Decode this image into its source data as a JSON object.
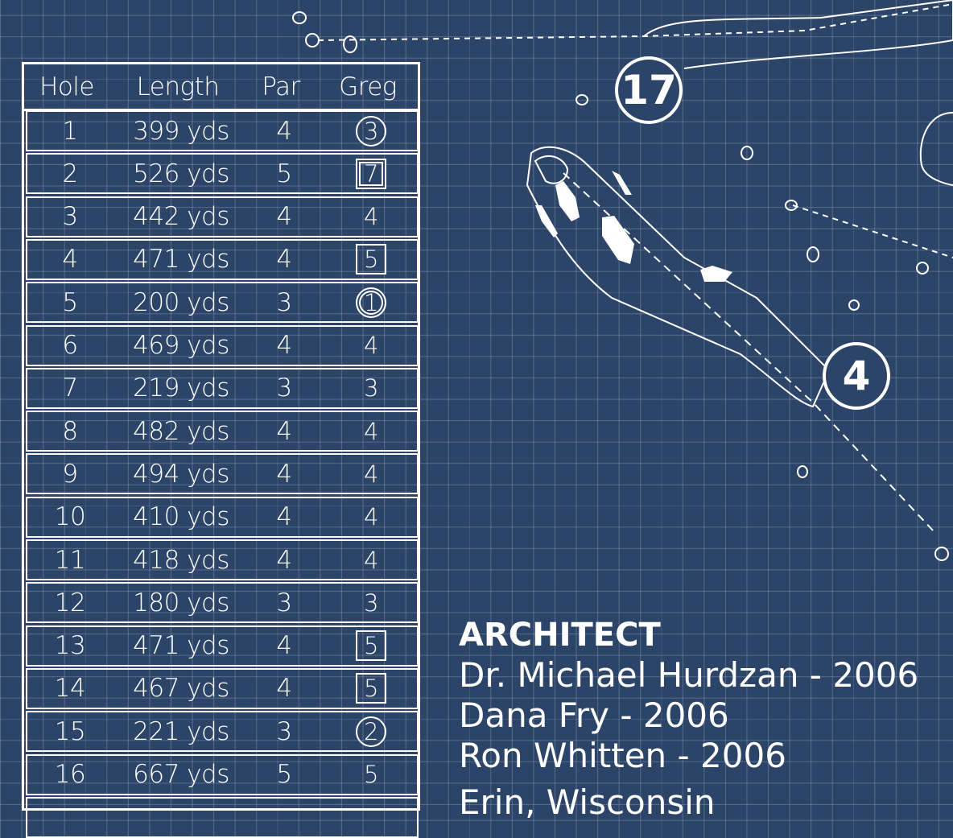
{
  "colors": {
    "background": "#2b4468",
    "lines": "#ffffff"
  },
  "scorecard": {
    "headers": {
      "hole": "Hole",
      "length": "Length",
      "par": "Par",
      "player": "Greg"
    },
    "rows": [
      {
        "hole": "1",
        "length": "399 yds",
        "par": "4",
        "score": "3",
        "mark": "circle"
      },
      {
        "hole": "2",
        "length": "526 yds",
        "par": "5",
        "score": "7",
        "mark": "double-square"
      },
      {
        "hole": "3",
        "length": "442 yds",
        "par": "4",
        "score": "4",
        "mark": "none"
      },
      {
        "hole": "4",
        "length": "471 yds",
        "par": "4",
        "score": "5",
        "mark": "square"
      },
      {
        "hole": "5",
        "length": "200 yds",
        "par": "3",
        "score": "1",
        "mark": "double-circle"
      },
      {
        "hole": "6",
        "length": "469 yds",
        "par": "4",
        "score": "4",
        "mark": "none"
      },
      {
        "hole": "7",
        "length": "219 yds",
        "par": "3",
        "score": "3",
        "mark": "none"
      },
      {
        "hole": "8",
        "length": "482 yds",
        "par": "4",
        "score": "4",
        "mark": "none"
      },
      {
        "hole": "9",
        "length": "494 yds",
        "par": "4",
        "score": "4",
        "mark": "none"
      },
      {
        "hole": "10",
        "length": "410 yds",
        "par": "4",
        "score": "4",
        "mark": "none"
      },
      {
        "hole": "11",
        "length": "418 yds",
        "par": "4",
        "score": "4",
        "mark": "none"
      },
      {
        "hole": "12",
        "length": "180 yds",
        "par": "3",
        "score": "3",
        "mark": "none"
      },
      {
        "hole": "13",
        "length": "471 yds",
        "par": "4",
        "score": "5",
        "mark": "square"
      },
      {
        "hole": "14",
        "length": "467 yds",
        "par": "4",
        "score": "5",
        "mark": "square"
      },
      {
        "hole": "15",
        "length": "221 yds",
        "par": "3",
        "score": "2",
        "mark": "circle"
      },
      {
        "hole": "16",
        "length": "667 yds",
        "par": "5",
        "score": "5",
        "mark": "none"
      }
    ]
  },
  "architect": {
    "title": "ARCHITECT",
    "lines": [
      "Dr. Michael Hurdzan  -  2006",
      "Dana Fry  -  2006",
      "Ron Whitten  -  2006"
    ],
    "location": "Erin, Wisconsin"
  },
  "map": {
    "hole_markers": [
      "17",
      "4"
    ]
  }
}
